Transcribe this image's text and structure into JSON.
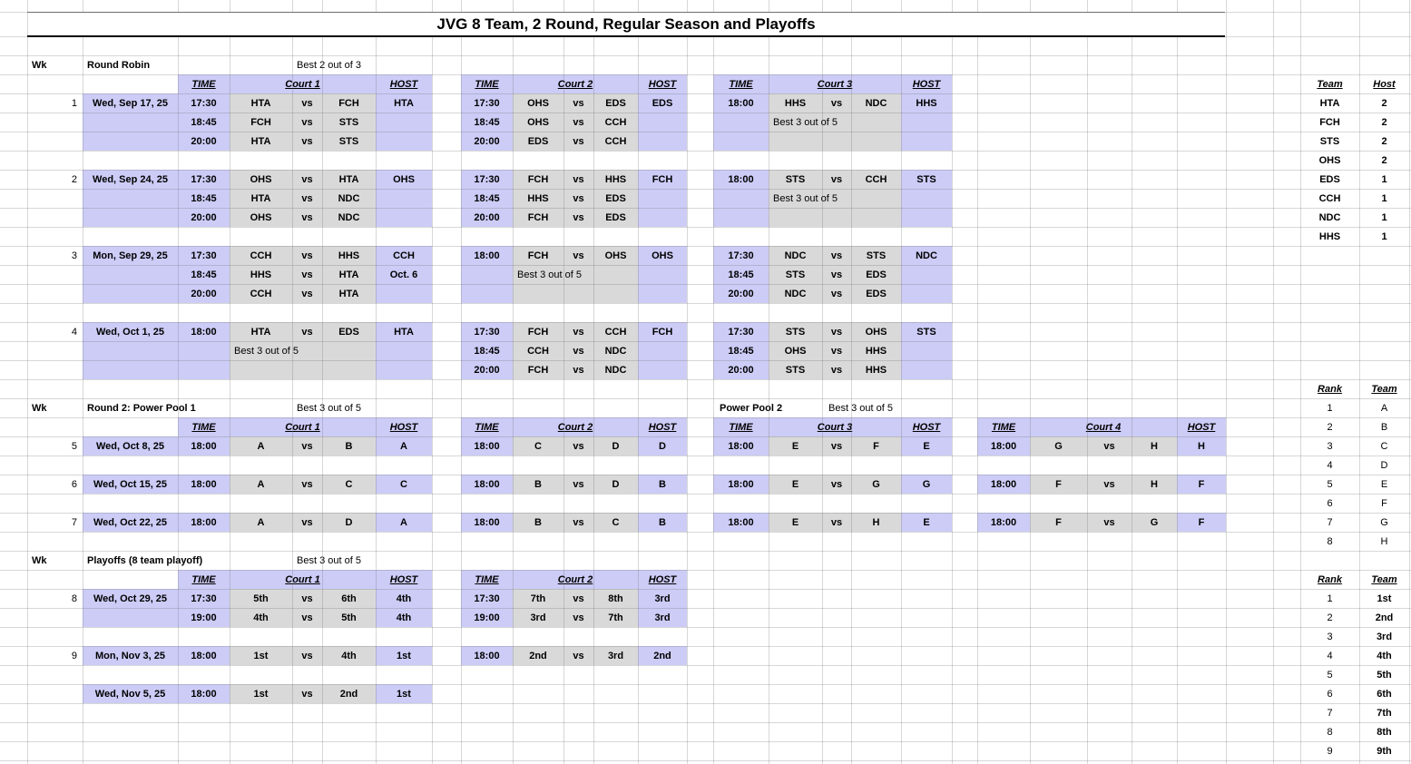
{
  "title": "JVG 8 Team, 2 Round, Regular Season and Playoffs",
  "labels": {
    "wk": "Wk",
    "time": "TIME",
    "host": "HOST",
    "vs": "vs"
  },
  "sections": [
    {
      "name": "Round Robin",
      "note": "Best 2 out of 3",
      "courts": [
        "Court 1",
        "Court 2",
        "Court 3"
      ],
      "weeks": [
        {
          "wk": "1",
          "date": "Wed, Sep 17, 25",
          "blocks": [
            [
              {
                "time": "17:30",
                "a": "HTA",
                "b": "FCH",
                "host": "HTA"
              },
              {
                "time": "18:45",
                "a": "FCH",
                "b": "STS"
              },
              {
                "time": "20:00",
                "a": "HTA",
                "b": "STS"
              }
            ],
            [
              {
                "time": "17:30",
                "a": "OHS",
                "b": "EDS",
                "host": "EDS"
              },
              {
                "time": "18:45",
                "a": "OHS",
                "b": "CCH"
              },
              {
                "time": "20:00",
                "a": "EDS",
                "b": "CCH"
              }
            ],
            [
              {
                "time": "18:00",
                "a": "HHS",
                "b": "NDC",
                "host": "HHS"
              },
              {
                "note": "Best 3 out of 5"
              },
              {
                "blank": true
              }
            ]
          ]
        },
        {
          "wk": "2",
          "date": "Wed, Sep 24, 25",
          "blocks": [
            [
              {
                "time": "17:30",
                "a": "OHS",
                "b": "HTA",
                "host": "OHS"
              },
              {
                "time": "18:45",
                "a": "HTA",
                "b": "NDC"
              },
              {
                "time": "20:00",
                "a": "OHS",
                "b": "NDC"
              }
            ],
            [
              {
                "time": "17:30",
                "a": "FCH",
                "b": "HHS",
                "host": "FCH"
              },
              {
                "time": "18:45",
                "a": "HHS",
                "b": "EDS"
              },
              {
                "time": "20:00",
                "a": "FCH",
                "b": "EDS"
              }
            ],
            [
              {
                "time": "18:00",
                "a": "STS",
                "b": "CCH",
                "host": "STS"
              },
              {
                "note": "Best 3 out of 5"
              },
              {
                "blank": true
              }
            ]
          ]
        },
        {
          "wk": "3",
          "date": "Mon, Sep 29, 25",
          "blocks": [
            [
              {
                "time": "17:30",
                "a": "CCH",
                "b": "HHS",
                "host": "CCH"
              },
              {
                "time": "18:45",
                "a": "HHS",
                "b": "HTA",
                "host": "Oct. 6"
              },
              {
                "time": "20:00",
                "a": "CCH",
                "b": "HTA"
              }
            ],
            [
              {
                "time": "18:00",
                "a": "FCH",
                "b": "OHS",
                "host": "OHS"
              },
              {
                "note": "Best 3 out of 5"
              },
              {
                "blank": true
              }
            ],
            [
              {
                "time": "17:30",
                "a": "NDC",
                "b": "STS",
                "host": "NDC"
              },
              {
                "time": "18:45",
                "a": "STS",
                "b": "EDS"
              },
              {
                "time": "20:00",
                "a": "NDC",
                "b": "EDS"
              }
            ]
          ]
        },
        {
          "wk": "4",
          "date": "Wed, Oct 1, 25",
          "blocks": [
            [
              {
                "time": "18:00",
                "a": "HTA",
                "b": "EDS",
                "host": "HTA"
              },
              {
                "note": "Best 3 out of 5"
              },
              {
                "blank": true
              }
            ],
            [
              {
                "time": "17:30",
                "a": "FCH",
                "b": "CCH",
                "host": "FCH"
              },
              {
                "time": "18:45",
                "a": "CCH",
                "b": "NDC"
              },
              {
                "time": "20:00",
                "a": "FCH",
                "b": "NDC"
              }
            ],
            [
              {
                "time": "17:30",
                "a": "STS",
                "b": "OHS",
                "host": "STS"
              },
              {
                "time": "18:45",
                "a": "OHS",
                "b": "HHS"
              },
              {
                "time": "20:00",
                "a": "STS",
                "b": "HHS"
              }
            ]
          ]
        }
      ]
    },
    {
      "name": "Round 2: Power Pool 1",
      "note": "Best 3 out of 5",
      "extra_label": "Power Pool 2",
      "extra_note": "Best 3 out of 5",
      "courts": [
        "Court 1",
        "Court 2",
        "Court 3",
        "Court 4"
      ],
      "weeks": [
        {
          "wk": "5",
          "date": "Wed, Oct 8, 25",
          "blocks": [
            [
              {
                "time": "18:00",
                "a": "A",
                "b": "B",
                "host": "A"
              }
            ],
            [
              {
                "time": "18:00",
                "a": "C",
                "b": "D",
                "host": "D"
              }
            ],
            [
              {
                "time": "18:00",
                "a": "E",
                "b": "F",
                "host": "E"
              }
            ],
            [
              {
                "time": "18:00",
                "a": "G",
                "b": "H",
                "host": "H"
              }
            ]
          ]
        },
        {
          "wk": "6",
          "date": "Wed, Oct 15, 25",
          "blocks": [
            [
              {
                "time": "18:00",
                "a": "A",
                "b": "C",
                "host": "C"
              }
            ],
            [
              {
                "time": "18:00",
                "a": "B",
                "b": "D",
                "host": "B"
              }
            ],
            [
              {
                "time": "18:00",
                "a": "E",
                "b": "G",
                "host": "G"
              }
            ],
            [
              {
                "time": "18:00",
                "a": "F",
                "b": "H",
                "host": "F"
              }
            ]
          ]
        },
        {
          "wk": "7",
          "date": "Wed, Oct 22, 25",
          "blocks": [
            [
              {
                "time": "18:00",
                "a": "A",
                "b": "D",
                "host": "A"
              }
            ],
            [
              {
                "time": "18:00",
                "a": "B",
                "b": "C",
                "host": "B"
              }
            ],
            [
              {
                "time": "18:00",
                "a": "E",
                "b": "H",
                "host": "E"
              }
            ],
            [
              {
                "time": "18:00",
                "a": "F",
                "b": "G",
                "host": "F"
              }
            ]
          ]
        }
      ]
    },
    {
      "name": "Playoffs (8 team playoff)",
      "note": "Best 3 out of 5",
      "courts": [
        "Court 1",
        "Court 2"
      ],
      "weeks": [
        {
          "wk": "8",
          "date": "Wed, Oct 29, 25",
          "blocks": [
            [
              {
                "time": "17:30",
                "a": "5th",
                "b": "6th",
                "host": "4th"
              },
              {
                "time": "19:00",
                "a": "4th",
                "b": "5th",
                "host": "4th"
              }
            ],
            [
              {
                "time": "17:30",
                "a": "7th",
                "b": "8th",
                "host": "3rd"
              },
              {
                "time": "19:00",
                "a": "3rd",
                "b": "7th",
                "host": "3rd"
              }
            ]
          ]
        },
        {
          "wk": "9",
          "date": "Mon, Nov 3, 25",
          "blocks": [
            [
              {
                "time": "18:00",
                "a": "1st",
                "b": "4th",
                "host": "1st"
              }
            ],
            [
              {
                "time": "18:00",
                "a": "2nd",
                "b": "3rd",
                "host": "2nd"
              }
            ]
          ]
        },
        {
          "wk": "",
          "date": "Wed, Nov 5, 25",
          "blocks": [
            [
              {
                "time": "18:00",
                "a": "1st",
                "b": "2nd",
                "host": "1st"
              }
            ]
          ]
        }
      ]
    }
  ],
  "side_tables": [
    {
      "headers": [
        "Team",
        "Host"
      ],
      "rows": [
        [
          "HTA",
          "2"
        ],
        [
          "FCH",
          "2"
        ],
        [
          "STS",
          "2"
        ],
        [
          "OHS",
          "2"
        ],
        [
          "EDS",
          "1"
        ],
        [
          "CCH",
          "1"
        ],
        [
          "NDC",
          "1"
        ],
        [
          "HHS",
          "1"
        ]
      ]
    },
    {
      "headers": [
        "Rank",
        "Team"
      ],
      "rows": [
        [
          "1",
          "A"
        ],
        [
          "2",
          "B"
        ],
        [
          "3",
          "C"
        ],
        [
          "4",
          "D"
        ],
        [
          "5",
          "E"
        ],
        [
          "6",
          "F"
        ],
        [
          "7",
          "G"
        ],
        [
          "8",
          "H"
        ]
      ]
    },
    {
      "headers": [
        "Rank",
        "Team"
      ],
      "rows": [
        [
          "1",
          "1st"
        ],
        [
          "2",
          "2nd"
        ],
        [
          "3",
          "3rd"
        ],
        [
          "4",
          "4th"
        ],
        [
          "5",
          "5th"
        ],
        [
          "6",
          "6th"
        ],
        [
          "7",
          "7th"
        ],
        [
          "8",
          "8th"
        ],
        [
          "9",
          "9th"
        ]
      ]
    }
  ],
  "colors": {
    "accent_fill": "#ccccf7",
    "match_fill": "#d9d9d9"
  }
}
